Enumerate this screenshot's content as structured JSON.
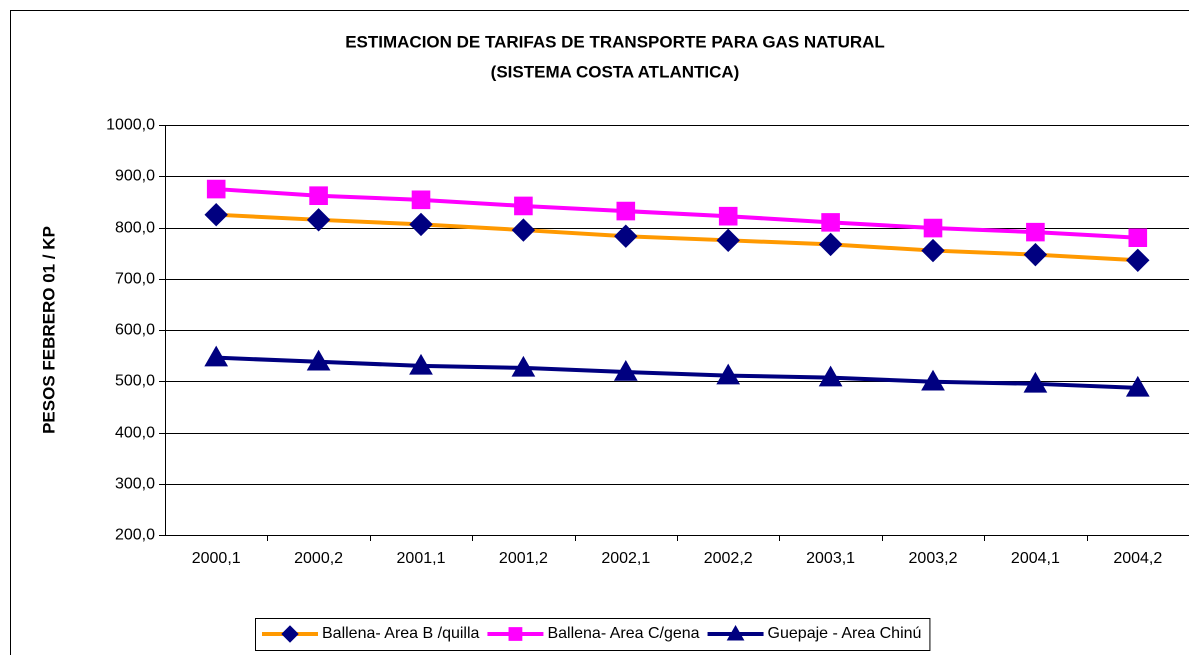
{
  "chart_data": {
    "type": "line",
    "title": "ESTIMACION DE TARIFAS DE TRANSPORTE PARA GAS NATURAL",
    "subtitle": "(SISTEMA COSTA ATLANTICA)",
    "y_label": "PESOS FEBRERO 01 / KP",
    "categories": [
      "2000,1",
      "2000,2",
      "2001,1",
      "2001,2",
      "2002,1",
      "2002,2",
      "2003,1",
      "2003,2",
      "2004,1",
      "2004,2"
    ],
    "ylim": [
      200,
      1000
    ],
    "yticks": [
      {
        "value": 200,
        "label": "200,0"
      },
      {
        "value": 300,
        "label": "300,0"
      },
      {
        "value": 400,
        "label": "400,0"
      },
      {
        "value": 500,
        "label": "500,0"
      },
      {
        "value": 600,
        "label": "600,0"
      },
      {
        "value": 700,
        "label": "700,0"
      },
      {
        "value": 800,
        "label": "800,0"
      },
      {
        "value": 900,
        "label": "900,0"
      },
      {
        "value": 1000,
        "label": "1000,0"
      }
    ],
    "grid": true,
    "legend": "bottom",
    "series": [
      {
        "name": "Ballena- Area B /quilla",
        "color": "#ff9900",
        "marker_color": "#000080",
        "marker": "diamond",
        "values": [
          825,
          815,
          806,
          795,
          783,
          775,
          767,
          755,
          747,
          736
        ]
      },
      {
        "name": "Ballena- Area C/gena",
        "color": "#ff00ff",
        "marker_color": "#ff00ff",
        "marker": "square",
        "values": [
          875,
          862,
          854,
          842,
          832,
          822,
          810,
          799,
          791,
          780
        ]
      },
      {
        "name": "Guepaje - Area Chinú",
        "color": "#000080",
        "marker_color": "#000080",
        "marker": "triangle",
        "values": [
          546,
          538,
          530,
          526,
          518,
          511,
          507,
          499,
          495,
          487
        ]
      }
    ]
  }
}
